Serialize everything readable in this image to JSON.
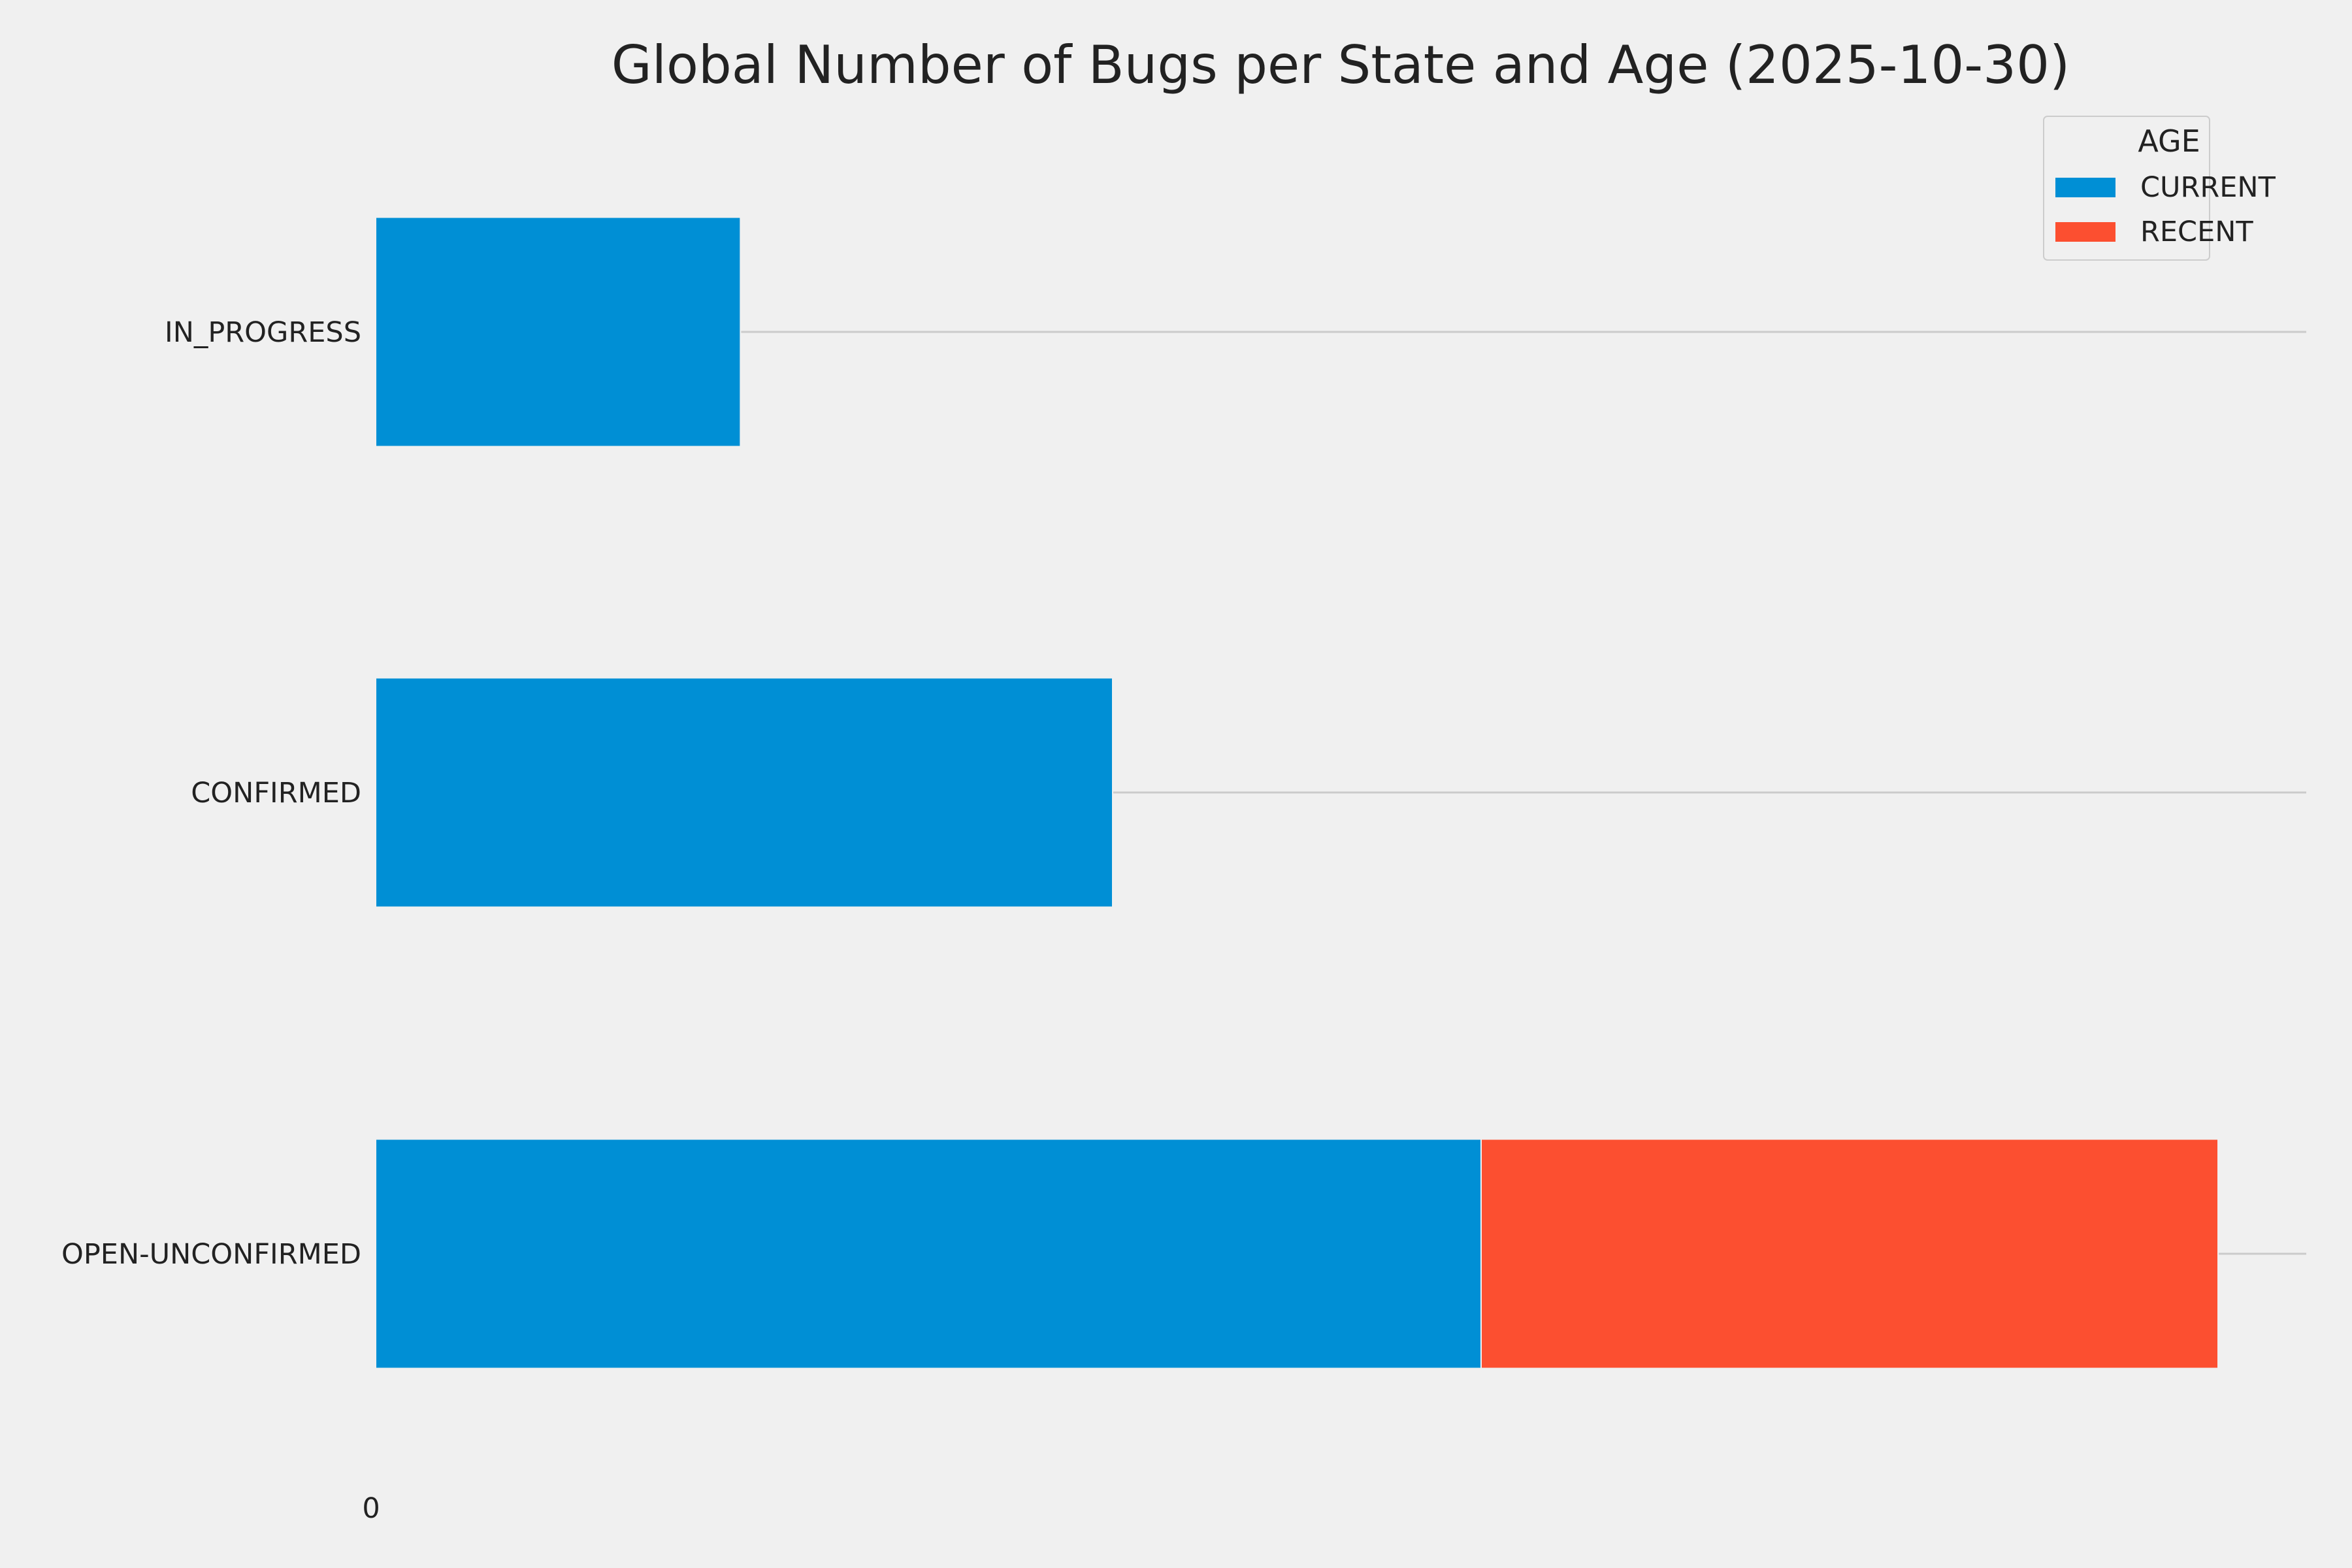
{
  "chart_data": {
    "type": "bar",
    "orientation": "horizontal",
    "stacked": true,
    "title": "Global Number of Bugs per State and Age (2025-10-30)",
    "xlabel": "",
    "ylabel": "",
    "categories": [
      "IN_PROGRESS",
      "CONFIRMED",
      "OPEN-UNCONFIRMED"
    ],
    "series": [
      {
        "name": "CURRENT",
        "color": "#008fd5",
        "values": [
          99,
          200,
          300
        ]
      },
      {
        "name": "RECENT",
        "color": "#fc4f30",
        "values": [
          0,
          0,
          200
        ]
      }
    ],
    "xlim": [
      0,
      524
    ],
    "x_ticks": [
      "0"
    ],
    "grid": "horizontal lines at categories",
    "legend": {
      "title": "AGE",
      "position": "top-right"
    },
    "colors": {
      "background": "#f0f0f0",
      "grid": "#cbcbcb",
      "text": "#222222"
    }
  }
}
